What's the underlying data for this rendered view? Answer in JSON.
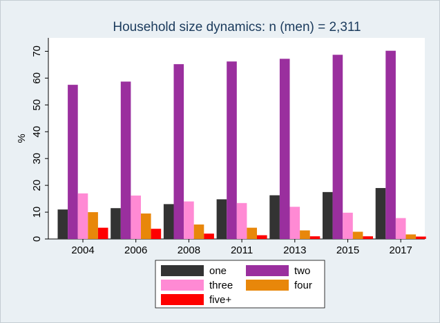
{
  "chart_data": {
    "type": "bar",
    "title": "Household size dynamics: n (men) = 2,311",
    "y_label": "%",
    "categories": [
      "2004",
      "2006",
      "2008",
      "2011",
      "2013",
      "2015",
      "2017"
    ],
    "series": [
      {
        "name": "one",
        "color": "#333333",
        "values": [
          11,
          11.5,
          13,
          14.8,
          16.3,
          17.5,
          19
        ]
      },
      {
        "name": "two",
        "color": "#9a2f9e",
        "values": [
          57.5,
          58.7,
          65.2,
          66.2,
          67.2,
          68.7,
          70.2
        ]
      },
      {
        "name": "three",
        "color": "#ff8ad4",
        "values": [
          17,
          16.2,
          14,
          13.4,
          12,
          9.8,
          7.8
        ]
      },
      {
        "name": "four",
        "color": "#e8870a",
        "values": [
          10,
          9.5,
          5.4,
          4.2,
          3.2,
          2.7,
          1.7
        ]
      },
      {
        "name": "five+",
        "color": "#ff0000",
        "values": [
          4.2,
          3.8,
          2,
          1.4,
          1,
          1,
          0.9
        ]
      }
    ],
    "ylim": [
      0,
      75
    ],
    "yticks": [
      0,
      10,
      20,
      30,
      40,
      50,
      60,
      70
    ],
    "grid": false
  }
}
